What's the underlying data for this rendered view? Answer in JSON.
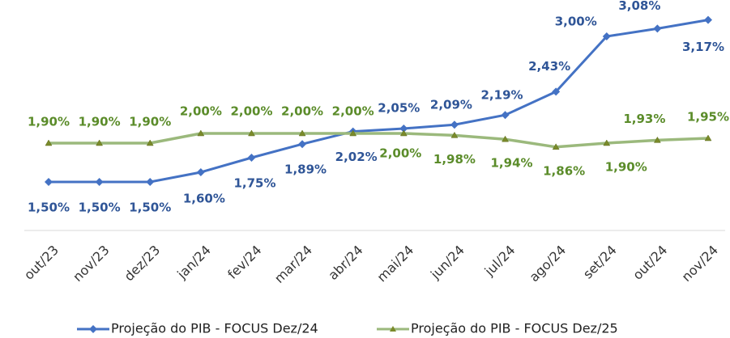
{
  "chart_data": {
    "type": "line",
    "categories": [
      "out/23",
      "nov/23",
      "dez/23",
      "jan/24",
      "fev/24",
      "mar/24",
      "abr/24",
      "mai/24",
      "jun/24",
      "jul/24",
      "ago/24",
      "set/24",
      "out/24",
      "nov/24"
    ],
    "series": [
      {
        "name": "Projeção do PIB - FOCUS Dez/24",
        "color": "#4472c4",
        "marker": "diamond",
        "values": [
          1.5,
          1.5,
          1.5,
          1.6,
          1.75,
          1.89,
          2.02,
          2.05,
          2.09,
          2.19,
          2.43,
          3.0,
          3.08,
          3.17
        ],
        "value_labels": [
          "1,50%",
          "1,50%",
          "1,50%",
          "1,60%",
          "1,75%",
          "1,89%",
          "2,02%",
          "2,05%",
          "2,09%",
          "2,19%",
          "2,43%",
          "3,00%",
          "3,08%",
          "3,17%"
        ]
      },
      {
        "name": "Projeção do PIB - FOCUS Dez/25",
        "color": "#9bb97c",
        "marker": "triangle",
        "values": [
          1.9,
          1.9,
          1.9,
          2.0,
          2.0,
          2.0,
          2.0,
          2.0,
          1.98,
          1.94,
          1.86,
          1.9,
          1.93,
          1.95
        ],
        "value_labels": [
          "1,90%",
          "1,90%",
          "1,90%",
          "2,00%",
          "2,00%",
          "2,00%",
          "2,00%",
          "2,00%",
          "1,98%",
          "1,94%",
          "1,86%",
          "1,90%",
          "1,93%",
          "1,95%"
        ]
      }
    ],
    "ylim": [
      1.0,
      3.4
    ],
    "grid": false,
    "legend": "bottom"
  }
}
